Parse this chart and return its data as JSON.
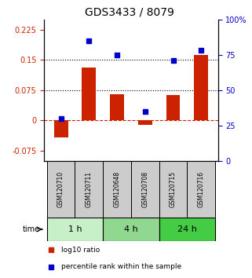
{
  "title": "GDS3433 / 8079",
  "samples": [
    "GSM120710",
    "GSM120711",
    "GSM120648",
    "GSM120708",
    "GSM120715",
    "GSM120716"
  ],
  "log10_ratio": [
    -0.042,
    0.13,
    0.065,
    -0.012,
    0.063,
    0.163
  ],
  "percentile_rank": [
    30,
    85,
    75,
    35,
    71,
    78
  ],
  "time_groups": [
    {
      "label": "1 h",
      "cols": [
        0,
        1
      ],
      "color": "#c8f0c8"
    },
    {
      "label": "4 h",
      "cols": [
        2,
        3
      ],
      "color": "#90d890"
    },
    {
      "label": "24 h",
      "cols": [
        4,
        5
      ],
      "color": "#44cc44"
    }
  ],
  "bar_color": "#cc2200",
  "dot_color": "#0000cc",
  "zero_line_color": "#cc2200",
  "dotted_line_color": "#000000",
  "left_ylim": [
    -0.1,
    0.25
  ],
  "right_ylim": [
    0,
    100
  ],
  "left_yticks": [
    -0.075,
    0,
    0.075,
    0.15,
    0.225
  ],
  "right_yticks": [
    0,
    25,
    50,
    75,
    100
  ],
  "hlines": [
    0.075,
    0.15
  ],
  "background_color": "#ffffff",
  "plot_bg": "#ffffff",
  "sample_box_color": "#cccccc",
  "title_fontsize": 10,
  "tick_fontsize": 7,
  "label_fontsize": 6,
  "legend_fontsize": 6.5,
  "time_label_fontsize": 8
}
